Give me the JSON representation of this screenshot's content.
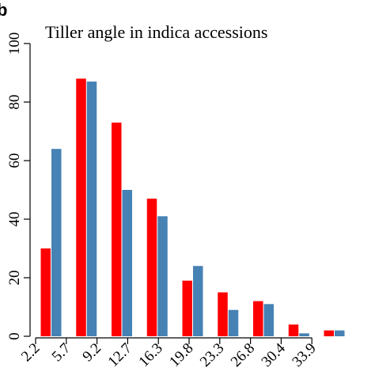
{
  "panel_letter": "b",
  "colors": {
    "series_1": "#ff0000",
    "series_2": "#4682b4",
    "axis": "#000000",
    "background": "#ffffff"
  },
  "chart_data": {
    "type": "bar",
    "title": "Tiller angle in indica accessions",
    "xlabel": "",
    "ylabel": "",
    "ylim": [
      0,
      100
    ],
    "yticks": [
      0,
      20,
      40,
      60,
      80,
      100
    ],
    "x_tick_labels": [
      "2.2",
      "5.7",
      "9.2",
      "12.7",
      "16.3",
      "19.8",
      "23.3",
      "26.8",
      "30.4",
      "33.9"
    ],
    "grid": false,
    "legend": "none",
    "series": [
      {
        "values": [
          30,
          88,
          73,
          47,
          19,
          15,
          12,
          4,
          2
        ]
      },
      {
        "values": [
          64,
          87,
          50,
          41,
          24,
          9,
          11,
          1,
          2
        ]
      }
    ]
  }
}
